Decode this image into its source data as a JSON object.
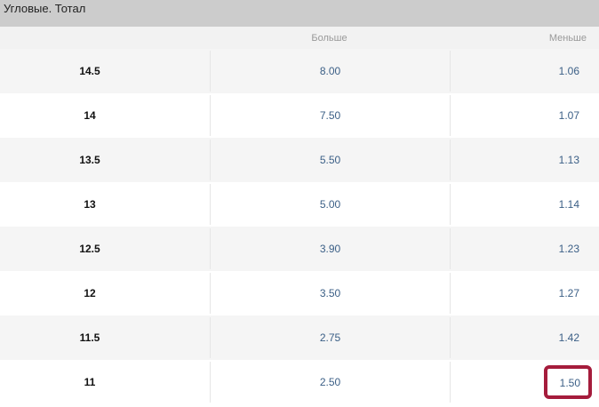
{
  "title": "Угловые. Тотал",
  "columns": {
    "over": "Больше",
    "under": "Меньше"
  },
  "accent_color": "#a51c3c",
  "rows": [
    {
      "line": "14.5",
      "over": "8.00",
      "under": "1.06"
    },
    {
      "line": "14",
      "over": "7.50",
      "under": "1.07"
    },
    {
      "line": "13.5",
      "over": "5.50",
      "under": "1.13"
    },
    {
      "line": "13",
      "over": "5.00",
      "under": "1.14"
    },
    {
      "line": "12.5",
      "over": "3.90",
      "under": "1.23"
    },
    {
      "line": "12",
      "over": "3.50",
      "under": "1.27"
    },
    {
      "line": "11.5",
      "over": "2.75",
      "under": "1.42"
    },
    {
      "line": "11",
      "over": "2.50",
      "under": "1.50",
      "highlighted": true
    }
  ]
}
